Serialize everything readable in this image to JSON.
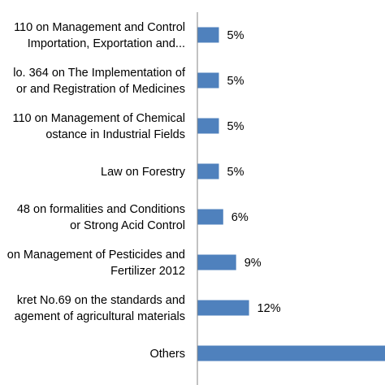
{
  "chart_data": {
    "type": "bar",
    "orientation": "horizontal",
    "bar_color": "#4f81bd",
    "axis_color": "#868686",
    "value_unit": "%",
    "grid": false,
    "legend": "none",
    "xlim": [
      0,
      50
    ],
    "categories": [
      {
        "lines": [
          "110 on Management and Control",
          "Importation, Exportation and..."
        ],
        "value": 5,
        "label": "5%"
      },
      {
        "lines": [
          "lo. 364 on The Implementation of",
          "or and Registration of Medicines"
        ],
        "value": 5,
        "label": "5%"
      },
      {
        "lines": [
          "110 on Management of Chemical",
          "ostance in Industrial Fields"
        ],
        "value": 5,
        "label": "5%"
      },
      {
        "lines": [
          "Law on Forestry"
        ],
        "value": 5,
        "label": "5%"
      },
      {
        "lines": [
          "48 on formalities and Conditions",
          "or Strong Acid Control"
        ],
        "value": 6,
        "label": "6%"
      },
      {
        "lines": [
          "on Management of Pesticides and",
          "Fertilizer 2012"
        ],
        "value": 9,
        "label": "9%"
      },
      {
        "lines": [
          "kret No.69 on the standards and",
          "agement of agricultural materials"
        ],
        "value": 12,
        "label": "12%"
      },
      {
        "lines": [
          "Others"
        ],
        "value": 53,
        "label": ""
      }
    ]
  }
}
